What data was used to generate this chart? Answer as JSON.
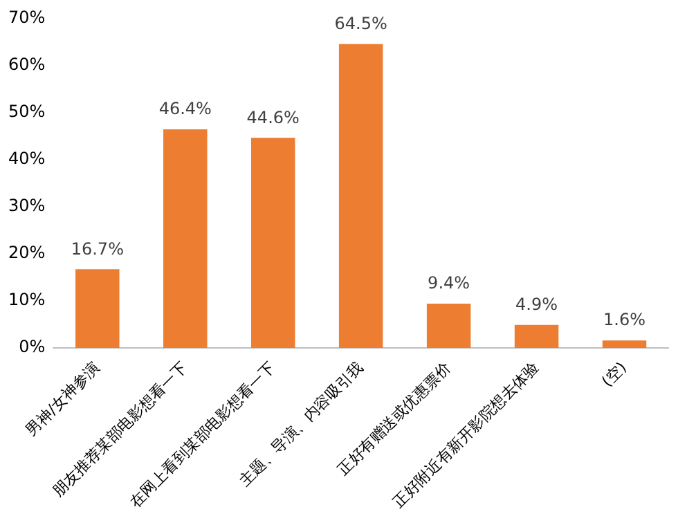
{
  "chart_data": {
    "type": "bar",
    "categories": [
      "男神/女神参演",
      "朋友推荐某部电影想看一下",
      "在网上看到某部电影想看一下",
      "主题、导演、内容吸引我",
      "正好有赠送或优惠票价",
      "正好附近有新开影院想去体验",
      "(空)"
    ],
    "values": [
      16.7,
      46.4,
      44.6,
      64.5,
      9.4,
      4.9,
      1.6
    ],
    "value_labels": [
      "16.7%",
      "46.4%",
      "44.6%",
      "64.5%",
      "9.4%",
      "4.9%",
      "1.6%"
    ],
    "color": "#ed7d31",
    "ylim": [
      0,
      70
    ],
    "yticks": [
      {
        "value": 0,
        "label": "0%"
      },
      {
        "value": 10,
        "label": "10%"
      },
      {
        "value": 20,
        "label": "20%"
      },
      {
        "value": 30,
        "label": "30%"
      },
      {
        "value": 40,
        "label": "40%"
      },
      {
        "value": 50,
        "label": "50%"
      },
      {
        "value": 60,
        "label": "60%"
      },
      {
        "value": 70,
        "label": "70%"
      }
    ],
    "grid": false,
    "legend": false
  }
}
